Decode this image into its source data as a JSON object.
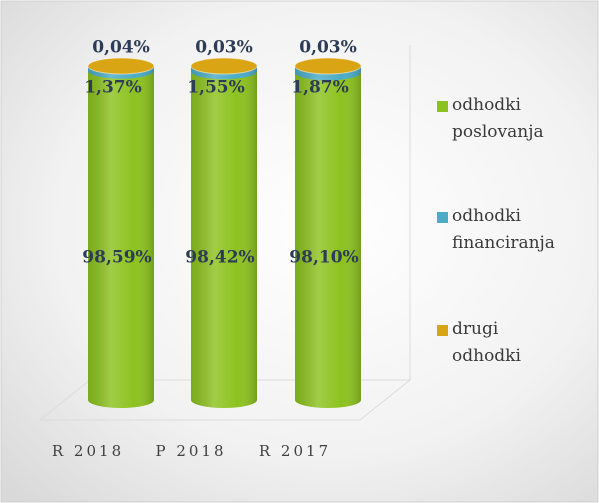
{
  "chart_data": {
    "type": "stacked-cylinder",
    "categories": [
      "R 2018",
      "P 2018",
      "R 2017"
    ],
    "series": [
      {
        "name": "odhodki poslovanja",
        "color": "#8cc21f",
        "values": [
          98.59,
          98.42,
          98.1
        ],
        "value_labels": [
          "98,59%",
          "98,42%",
          "98,10%"
        ]
      },
      {
        "name": "odhodki financiranja",
        "color": "#4bacc6",
        "values": [
          1.37,
          1.55,
          1.87
        ],
        "value_labels": [
          "1,37%",
          "1,55%",
          "1,87%"
        ]
      },
      {
        "name": "drugi odhodki",
        "color": "#d9a514",
        "values": [
          0.04,
          0.03,
          0.03
        ],
        "value_labels": [
          "0,04%",
          "0,03%",
          "0,03%"
        ]
      }
    ],
    "legend": "right"
  }
}
